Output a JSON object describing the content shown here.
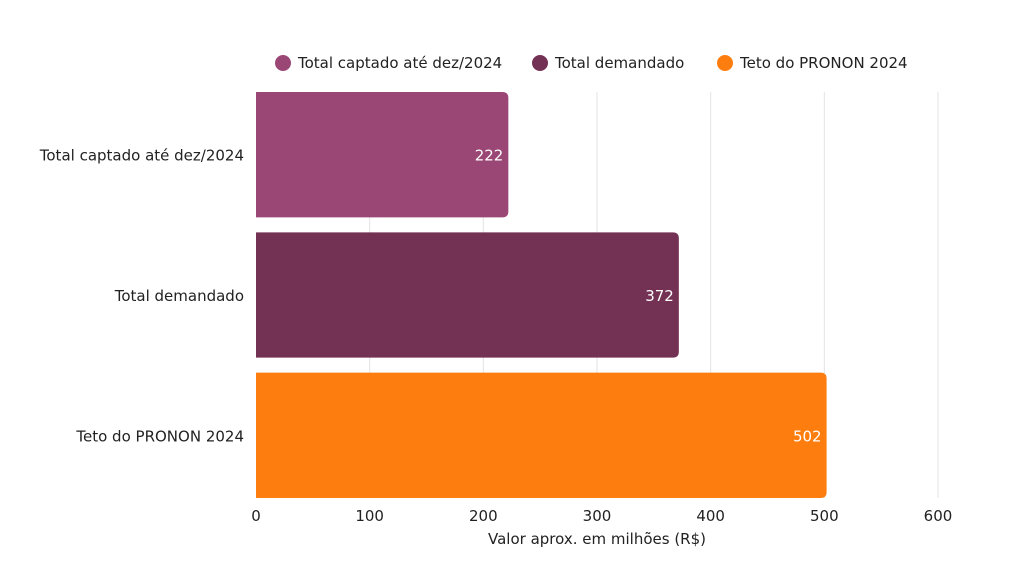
{
  "chart_data": {
    "type": "bar",
    "orientation": "horizontal",
    "title": "",
    "categories": [
      "Total captado até dez/2024",
      "Total demandado",
      "Teto do PRONON 2024"
    ],
    "values": [
      222,
      372,
      502
    ],
    "data_labels": [
      "222",
      "372",
      "502"
    ],
    "colors": [
      "#9b4776",
      "#733154",
      "#fe7d0f"
    ],
    "legend": {
      "placement": "top",
      "entries": [
        "Total captado até dez/2024",
        "Total demandado",
        "Teto do PRONON 2024"
      ]
    },
    "xlabel": "Valor aprox. em milhões (R$)",
    "ylabel": "",
    "xlim": [
      0,
      600
    ],
    "xticks": [
      0,
      100,
      200,
      300,
      400,
      500,
      600
    ],
    "xtick_labels": [
      "0",
      "100",
      "200",
      "300",
      "400",
      "500",
      "600"
    ],
    "grid": "vertical"
  }
}
